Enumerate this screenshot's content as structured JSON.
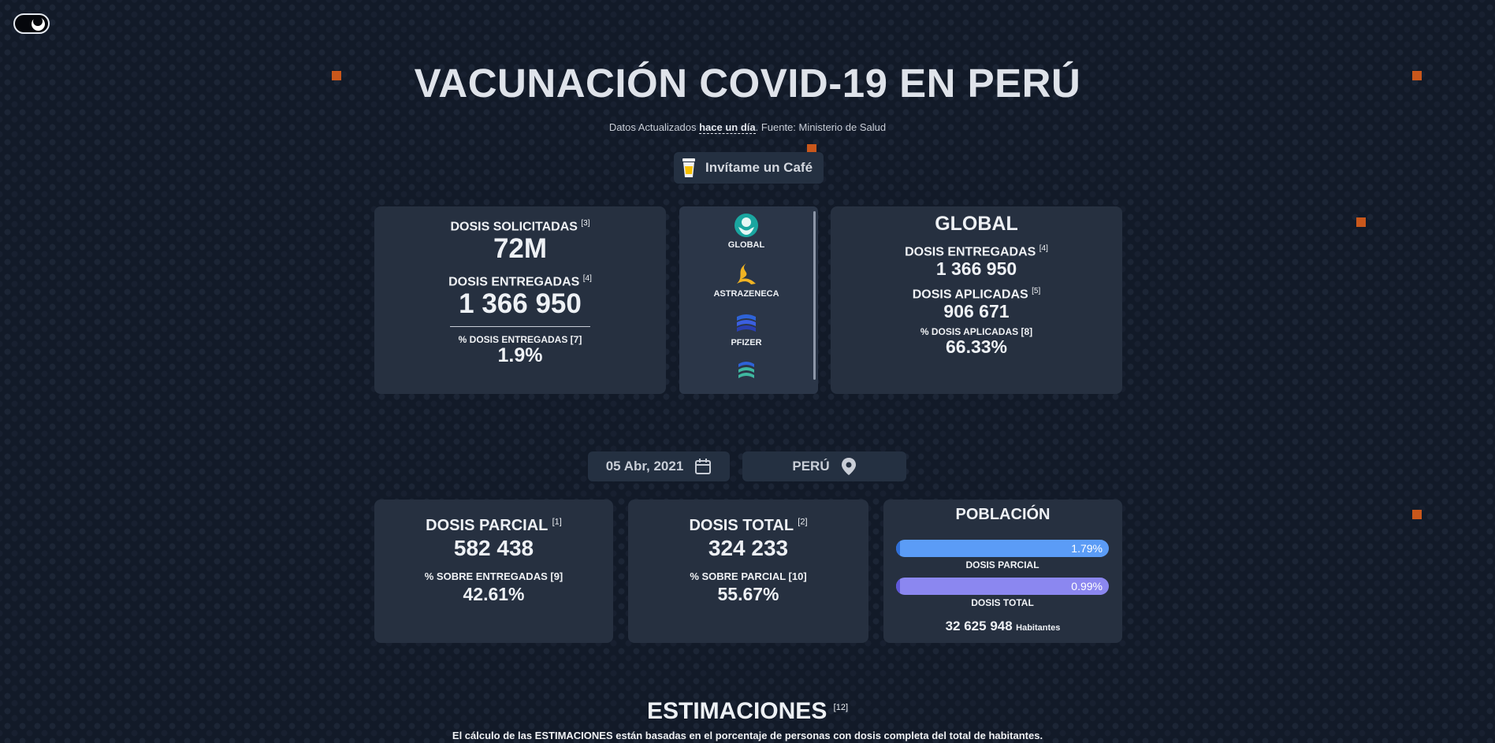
{
  "title": "VACUNACIÓN COVID-19 EN PERÚ",
  "updated": {
    "prefix": "Datos Actualizados ",
    "relative": "hace un día",
    "suffix": ". Fuente: Ministerio de Salud"
  },
  "coffee_button": "Invítame un Café",
  "doses_card": {
    "solicitadas_label": "DOSIS SOLICITADAS",
    "solicitadas_ref": "[3]",
    "solicitadas_value": "72M",
    "entregadas_label": "DOSIS ENTREGADAS",
    "entregadas_ref": "[4]",
    "entregadas_value": "1 366 950",
    "pct_label": "% DOSIS ENTREGADAS [7]",
    "pct_value": "1.9%"
  },
  "vaccines": [
    {
      "name": "GLOBAL",
      "icon": "hands-globe-icon",
      "color": "#1aa6a0"
    },
    {
      "name": "ASTRAZENECA",
      "icon": "astrazeneca-logo-icon",
      "color": "#f0b323"
    },
    {
      "name": "PFIZER",
      "icon": "pfizer-logo-icon",
      "color": "#2e63d8"
    },
    {
      "name": "",
      "icon": "sinopharm-logo-icon",
      "color": "#3fb8a0"
    }
  ],
  "global_card": {
    "title": "GLOBAL",
    "entregadas_label": "DOSIS ENTREGADAS",
    "entregadas_ref": "[4]",
    "entregadas_value": "1 366 950",
    "aplicadas_label": "DOSIS APLICADAS",
    "aplicadas_ref": "[5]",
    "aplicadas_value": "906 671",
    "pct_label": "% DOSIS APLICADAS [8]",
    "pct_value": "66.33%"
  },
  "date_selector": {
    "value": "05 Abr, 2021",
    "icon": "calendar-icon"
  },
  "location_selector": {
    "value": "PERÚ",
    "icon": "map-pin-icon"
  },
  "parcial_card": {
    "label": "DOSIS PARCIAL",
    "ref": "[1]",
    "value": "582 438",
    "pct_label": "% SOBRE ENTREGADAS [9]",
    "pct_value": "42.61%"
  },
  "total_card": {
    "label": "DOSIS TOTAL",
    "ref": "[2]",
    "value": "324 233",
    "pct_label": "% SOBRE PARCIAL [10]",
    "pct_value": "55.67%"
  },
  "population_card": {
    "title": "POBLACIÓN",
    "bars": [
      {
        "pct_text": "1.79%",
        "fraction": 0.0179,
        "caption": "DOSIS PARCIAL",
        "track": "#5b9cf6",
        "fill": "#2f6fd8"
      },
      {
        "pct_text": "0.99%",
        "fraction": 0.0099,
        "caption": "DOSIS TOTAL",
        "track": "#8b87f0",
        "fill": "#5f57d9"
      }
    ],
    "habitantes_value": "32 625 948",
    "habitantes_label": "Habitantes"
  },
  "estimaciones": {
    "title": "ESTIMACIONES",
    "ref": "[12]",
    "note": "El cálculo de las ESTIMACIONES están basadas en el porcentaje de personas con dosis completa del total de habitantes."
  },
  "colors": {
    "accent": "#c9571b",
    "background": "#121a28",
    "card": "#263040"
  }
}
